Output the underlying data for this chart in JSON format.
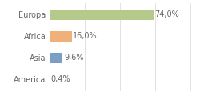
{
  "categories": [
    "Europa",
    "Africa",
    "Asia",
    "America"
  ],
  "values": [
    74.0,
    16.0,
    9.6,
    0.4
  ],
  "bar_colors": [
    "#b5c98a",
    "#f0b07a",
    "#7b9fc4",
    "#b5c98a"
  ],
  "labels": [
    "74,0%",
    "16,0%",
    "9,6%",
    "0,4%"
  ],
  "background_color": "#ffffff",
  "xlim": [
    0,
    105
  ],
  "bar_height": 0.5,
  "label_fontsize": 7,
  "tick_fontsize": 7,
  "grid_ticks": [
    0,
    25,
    50,
    75,
    100
  ],
  "grid_color": "#dddddd",
  "text_color": "#666666"
}
